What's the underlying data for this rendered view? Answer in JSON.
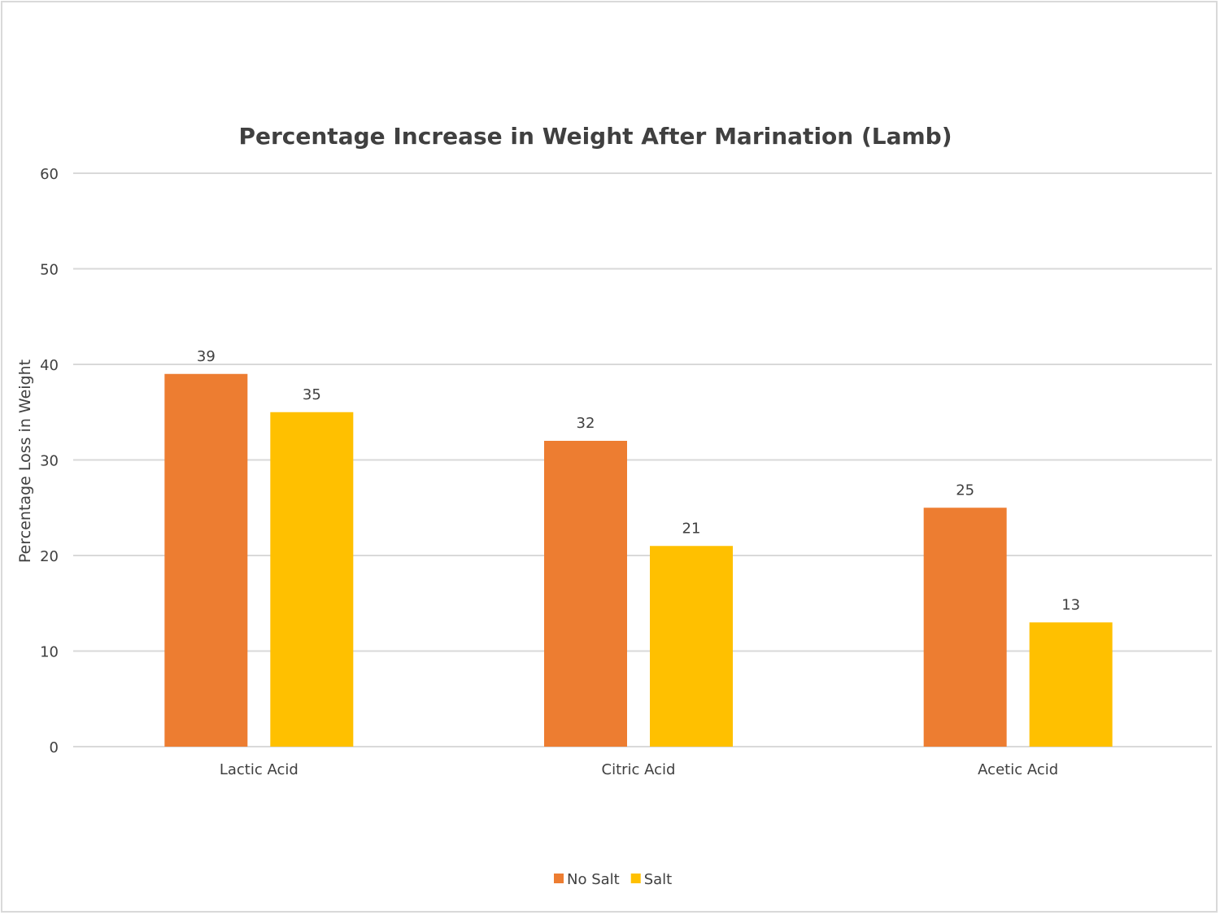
{
  "chart_data": {
    "type": "bar",
    "title": "Percentage Increase in Weight After Marination (Lamb)",
    "xlabel": "",
    "ylabel": "Percentage Loss in Weight",
    "ylim": [
      0,
      60
    ],
    "yticks": [
      "0",
      "10",
      "20",
      "30",
      "40",
      "50",
      "60"
    ],
    "grid": true,
    "legend_position": "bottom",
    "categories": [
      "Lactic Acid",
      "Citric Acid",
      "Acetic Acid"
    ],
    "series": [
      {
        "name": "No Salt",
        "color": "#ed7d31",
        "values": [
          39,
          32,
          25
        ]
      },
      {
        "name": "Salt",
        "color": "#ffc000",
        "values": [
          35,
          21,
          13
        ]
      }
    ]
  }
}
